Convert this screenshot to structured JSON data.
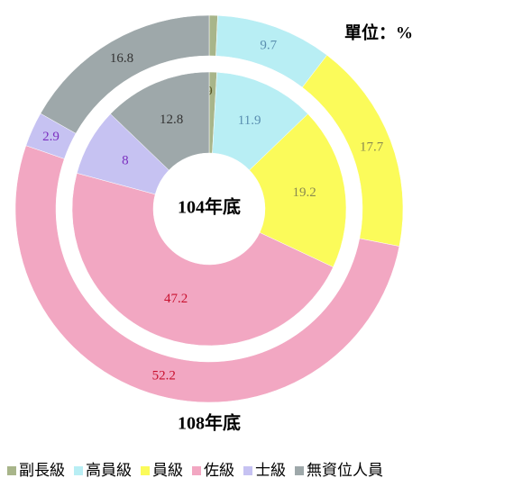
{
  "chart_data": {
    "type": "donut",
    "unit_label": "單位：%",
    "categories": [
      "副長級",
      "高員級",
      "員級",
      "佐級",
      "士級",
      "無資位人員"
    ],
    "colors": [
      "#a8b58a",
      "#b8eef4",
      "#fbfb5a",
      "#f2a7c2",
      "#c6c2f2",
      "#9ea8aa"
    ],
    "label_colors": [
      "#5a5a2a",
      "#5a8fb0",
      "#8a8a50",
      "#c8102e",
      "#7b2fbf",
      "#333333"
    ],
    "series": [
      {
        "name": "108年底",
        "values": [
          0.7,
          9.7,
          17.7,
          52.2,
          2.9,
          16.8
        ]
      },
      {
        "name": "104年底",
        "values": [
          0.9,
          11.9,
          19.2,
          47.2,
          8.0,
          12.8
        ]
      }
    ]
  }
}
